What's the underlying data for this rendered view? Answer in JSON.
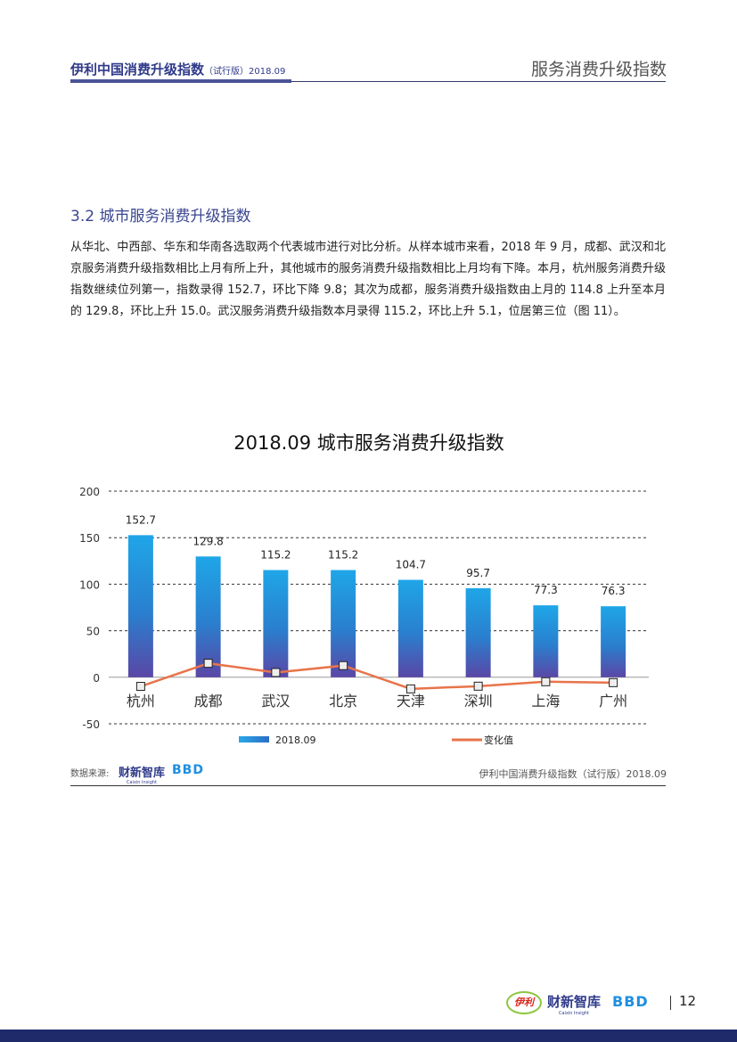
{
  "header": {
    "report_title": "伊利中国消费升级指数",
    "report_subtitle": "（试行版）2018.09",
    "section_name": "服务消费升级指数"
  },
  "section": {
    "title": "3.2  城市服务消费升级指数",
    "paragraph": "从华北、中西部、华东和华南各选取两个代表城市进行对比分析。从样本城市来看，2018 年 9 月，成都、武汉和北京服务消费升级指数相比上月有所上升，其他城市的服务消费升级指数相比上月均有下降。本月，杭州服务消费升级指数继续位列第一，指数录得 152.7，环比下降 9.8；其次为成都，服务消费升级指数由上月的 114.8 上升至本月的 129.8，环比上升 15.0。武汉服务消费升级指数本月录得 115.2，环比上升 5.1，位居第三位（图 11）。"
  },
  "chart_data": {
    "type": "bar",
    "title": "2018.09 城市服务消费升级指数",
    "categories": [
      "杭州",
      "成都",
      "武汉",
      "北京",
      "天津",
      "深圳",
      "上海",
      "广州"
    ],
    "series": [
      {
        "name": "2018.09",
        "type": "bar",
        "values": [
          152.7,
          129.8,
          115.2,
          115.2,
          104.7,
          95.7,
          77.3,
          76.3
        ],
        "labels": [
          "152.7",
          "129.8",
          "115.2",
          "115.2",
          "104.7",
          "95.7",
          "77.3",
          "76.3"
        ],
        "color_top": "#1fa6e8",
        "color_bottom": "#5a47a6"
      },
      {
        "name": "变化值",
        "type": "line",
        "values": [
          -9.8,
          15.0,
          5.1,
          12.5,
          -12.5,
          -9.6,
          -4.8,
          -5.8
        ],
        "color": "#e8744a"
      }
    ],
    "ylim": [
      -50,
      200
    ],
    "yticks": [
      "-50",
      "0",
      "50",
      "100",
      "150",
      "200"
    ],
    "grid": true,
    "legend": "bottom"
  },
  "footer": {
    "source_label": "数据来源:",
    "source_logo_cx": "财新智库",
    "source_logo_cx_sub": "Caixin Insight",
    "source_logo_bbd": "BBD",
    "report_ref": "伊利中国消费升级指数（试行版）2018.09",
    "logo_yili": "伊利",
    "page_number": "12"
  }
}
